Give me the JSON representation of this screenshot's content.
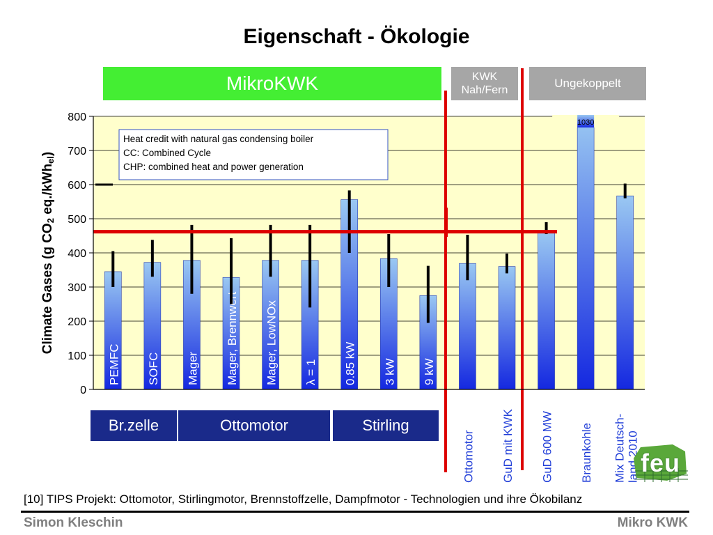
{
  "slide": {
    "title": "Eigenschaft - Ökologie",
    "citation": "[10] TIPS Projekt: Ottomotor, Stirlingmotor, Brennstoffzelle, Dampfmotor - Technologien und ihre Ökobilanz",
    "footer_left": "Simon Kleschin",
    "footer_right": "Mikro KWK",
    "logo_text": "feu"
  },
  "bands": {
    "top": [
      {
        "label": "MikroKWK",
        "color": "#44ee33"
      },
      {
        "label": "KWK Nah/Fern",
        "color": "#a6a6a6"
      },
      {
        "label": "Ungekoppelt",
        "color": "#a6a6a6"
      }
    ],
    "bottom": [
      {
        "label": "Br.zelle",
        "color": "#1a2a8a"
      },
      {
        "label": "Ottomotor",
        "color": "#1a2a8a"
      },
      {
        "label": "Stirling",
        "color": "#1a2a8a"
      }
    ]
  },
  "colors": {
    "plot_background": "#ffffcc",
    "bar_top": "#9ac8f2",
    "bar_bottom": "#1428e0",
    "reference_line": "#dd0000",
    "error_bar": "#000000"
  },
  "chart_data": {
    "type": "bar",
    "ylabel": "Climate Gases (g CO2 eq./kWhel)",
    "ylim": [
      0,
      800
    ],
    "yticks": [
      0,
      100,
      200,
      300,
      400,
      500,
      600,
      700,
      800
    ],
    "grid": "horizontal",
    "legend_box": [
      "Heat credit with natural gas condensing boiler",
      "CC: Combined Cycle",
      "CHP: combined heat and power generation"
    ],
    "categories": [
      "PEMFC",
      "SOFC",
      "Mager",
      "Mager, Brennwert",
      "Mager, LowNOx",
      "λ = 1",
      "0.85 kW",
      "3 kW",
      "9 kW",
      "Ottomotor",
      "GuD mit KWK",
      "GuD 600 MW",
      "Braunkohle",
      "Mix Deutsch-land 2010"
    ],
    "values": [
      345,
      372,
      378,
      328,
      378,
      378,
      556,
      383,
      275,
      369,
      360,
      462,
      1030,
      567
    ],
    "error_low": [
      300,
      330,
      280,
      250,
      330,
      240,
      400,
      300,
      195,
      320,
      340,
      455,
      null,
      560
    ],
    "error_high": [
      405,
      438,
      482,
      443,
      482,
      482,
      583,
      455,
      362,
      453,
      398,
      490,
      null,
      603
    ],
    "value_labels": [
      null,
      null,
      null,
      null,
      null,
      null,
      null,
      null,
      null,
      null,
      null,
      null,
      "1030",
      null
    ],
    "reference_line_value": 462
  }
}
